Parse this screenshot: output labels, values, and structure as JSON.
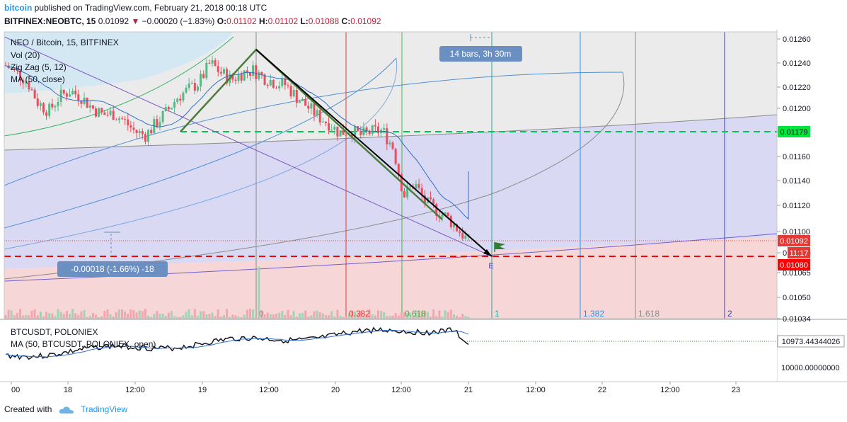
{
  "header": {
    "brand": "bitcoin",
    "published_text": " published on TradingView.com, February 21, 2018 00:18 UTC",
    "symbol": "BITFINEX:NEOBTC, 15",
    "last": "0.01092",
    "change_arrow": "▼",
    "change": "−0.00020 (−1.83%)",
    "o_label": "O:",
    "o": "0.01102",
    "h_label": "H:",
    "h": "0.01102",
    "l_label": "L:",
    "l": "0.01088",
    "c_label": "C:",
    "c": "0.01092"
  },
  "main_pane": {
    "legend": [
      "NEO / Bitcoin, 15, BITFINEX",
      "Vol (20)",
      "Zig Zag (5, 12)",
      "MA (50, close)"
    ],
    "measure_label": "14 bars, 3h 30m",
    "range_label": "-0.00018 (-1.66%) -18",
    "e_label": "E",
    "fib_time_labels": [
      "0",
      "0.382",
      "0.618",
      "1",
      "1.382",
      "1.618",
      "2"
    ],
    "price_badges": {
      "green_level": "0.01179",
      "last_price": "0.01092",
      "countdown": "11:17",
      "red_level": "0.01080",
      "partial": "0"
    }
  },
  "lower_pane": {
    "legend": [
      "BTCUSDT, POLONIEX",
      "MA (50, BTCUSDT, POLONIEX, open)"
    ],
    "price_badge": "10973.44344026",
    "axis_label": "10000.00000000"
  },
  "time_axis": [
    "00",
    "18",
    "12:00",
    "19",
    "12:00",
    "20",
    "12:00",
    "21",
    "12:00",
    "22",
    "12:00",
    "23"
  ],
  "footer": {
    "created_with": "Created with",
    "brand": "TradingView"
  },
  "colors": {
    "up": "#53b987",
    "down": "#eb4d5c",
    "blue_zone": "#dcdcf5",
    "grey_zone": "#ececec",
    "green_line": "#00c853",
    "red_line": "#ff0000",
    "fib_cyan": "#2196f3",
    "fib_red": "#e53935"
  },
  "chart_data": [
    {
      "type": "candlestick",
      "title": "NEO / Bitcoin, 15, BITFINEX",
      "x": [
        "18",
        "12:00",
        "19",
        "12:00",
        "20",
        "12:00",
        "21",
        "12:00",
        "22",
        "12:00",
        "23"
      ],
      "y_ticks": [
        "0.01260",
        "0.01240",
        "0.01220",
        "0.01200",
        "0.01180",
        "0.01160",
        "0.01140",
        "0.01120",
        "0.01100",
        "0.01080",
        "0.01065",
        "0.01050",
        "0.01034"
      ],
      "close_path": [
        0.01238,
        0.01232,
        0.01225,
        0.01207,
        0.012,
        0.01212,
        0.01217,
        0.01212,
        0.01203,
        0.01197,
        0.01198,
        0.01192,
        0.01183,
        0.0118,
        0.0119,
        0.012,
        0.01212,
        0.01218,
        0.01224,
        0.0124,
        0.01232,
        0.01226,
        0.01232,
        0.01234,
        0.01228,
        0.01224,
        0.01222,
        0.01212,
        0.01204,
        0.01196,
        0.0119,
        0.01182,
        0.01184,
        0.0118,
        0.01183,
        0.01184,
        0.0117,
        0.0113,
        0.0114,
        0.01124,
        0.01118,
        0.01112,
        0.01102,
        0.01092
      ],
      "horizontal_levels": [
        0.01179,
        0.0108
      ],
      "last": 0.01092
    },
    {
      "type": "line",
      "title": "BTCUSDT, POLONIEX",
      "y_ticks": [
        "10973.44344026",
        "10000.00000000"
      ],
      "last": 10973.44344026
    }
  ]
}
